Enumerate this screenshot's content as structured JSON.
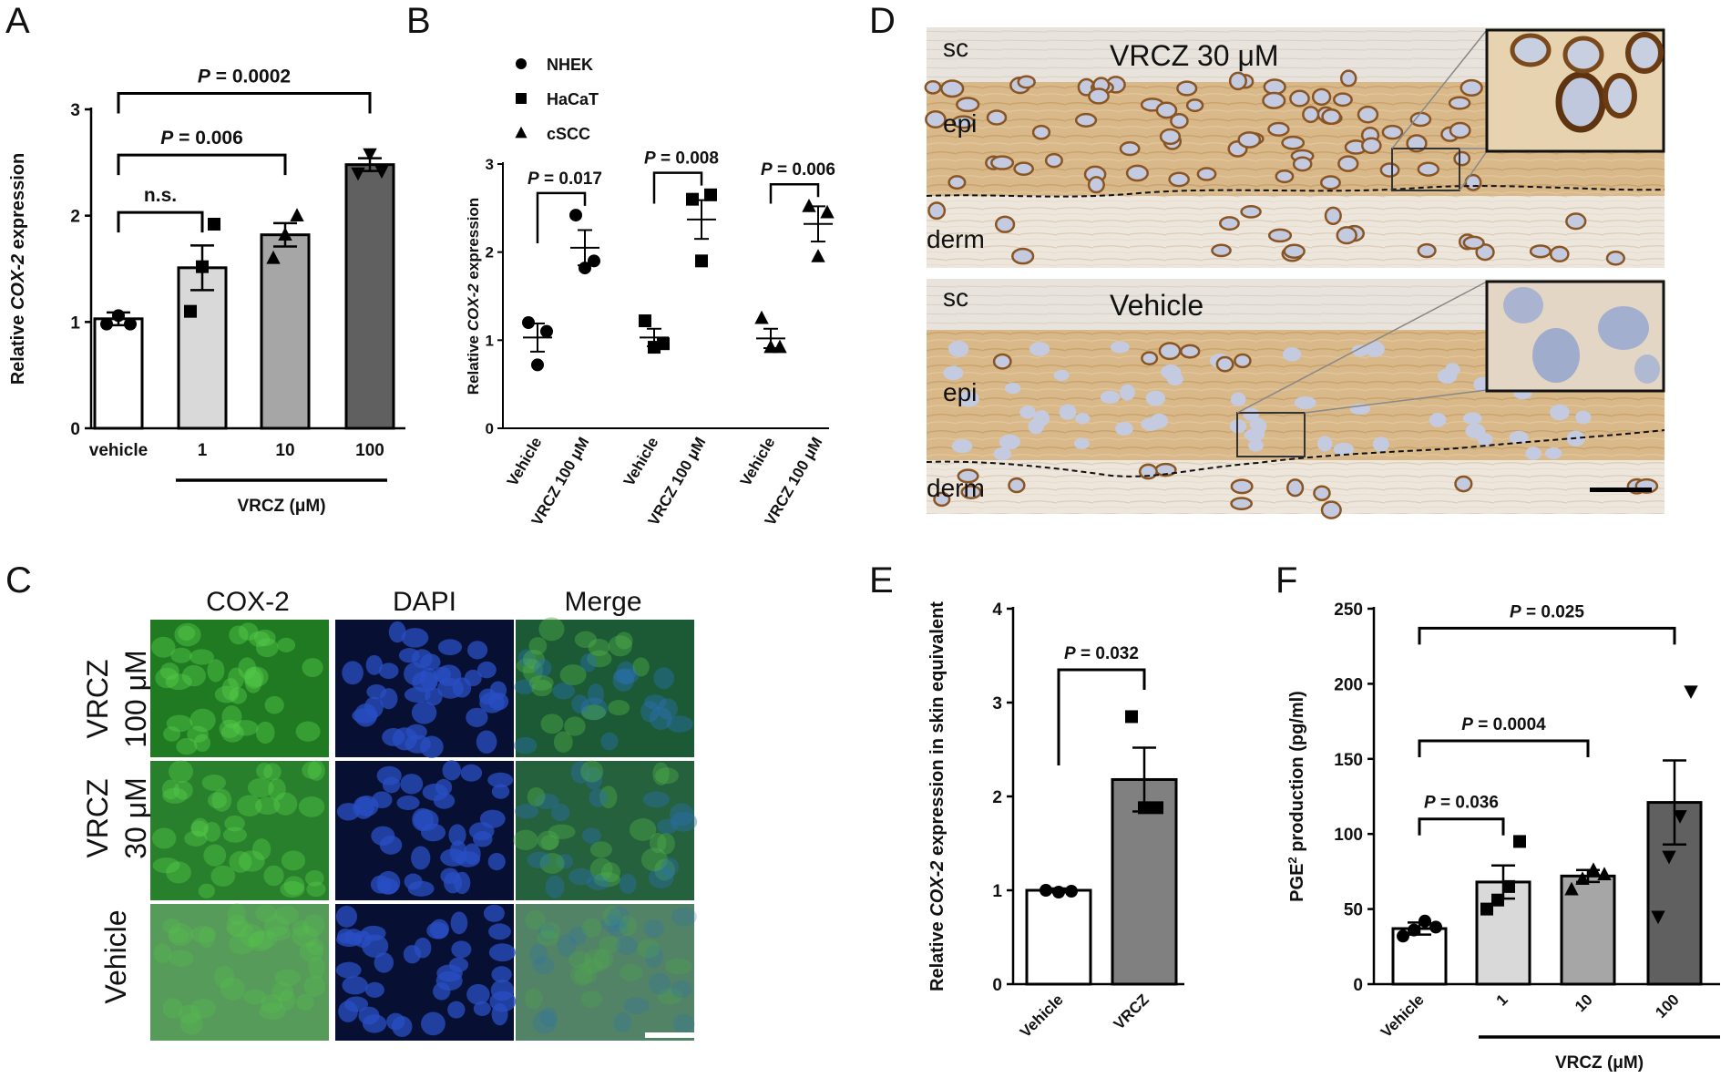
{
  "panels": {
    "A": "A",
    "B": "B",
    "C": "C",
    "D": "D",
    "E": "E",
    "F": "F"
  },
  "chart_data": [
    {
      "id": "A",
      "type": "bar",
      "categories": [
        "vehicle",
        "1",
        "10",
        "100"
      ],
      "values": [
        1.03,
        1.51,
        1.82,
        2.48
      ],
      "errors": [
        0.06,
        0.21,
        0.11,
        0.06
      ],
      "points": [
        [
          0.98,
          1.06,
          0.98
        ],
        [
          1.1,
          1.52,
          1.92
        ],
        [
          1.6,
          1.82,
          2.0
        ],
        [
          2.4,
          2.58,
          2.42
        ]
      ],
      "bar_colors": [
        "#ffffff",
        "#d9d9d9",
        "#a6a6a6",
        "#606060"
      ],
      "ylabel_pre": "Relative ",
      "ylabel_gene": "COX-2",
      "ylabel_post": " expression",
      "yticks": [
        "0",
        "1",
        "2",
        "3"
      ],
      "ylim": [
        0,
        3
      ],
      "group_label": "VRCZ (μM)",
      "comparisons": [
        {
          "from": 0,
          "to": 1,
          "y": 2.03,
          "p_label": "",
          "p_value": "n.s."
        },
        {
          "from": 0,
          "to": 2,
          "y": 2.57,
          "p_label": "P",
          "p_value": " = 0.006"
        },
        {
          "from": 0,
          "to": 3,
          "y": 3.15,
          "p_label": "P",
          "p_value": " = 0.0002"
        }
      ]
    },
    {
      "id": "B",
      "type": "scatter",
      "ylabel_pre": "Relative ",
      "ylabel_gene": "COX-2",
      "ylabel_post": " expression",
      "yticks": [
        "0",
        "1",
        "2",
        "3"
      ],
      "ylim": [
        0,
        3
      ],
      "legend": [
        {
          "label": "NHEK",
          "marker": "circle"
        },
        {
          "label": "HaCaT",
          "marker": "square"
        },
        {
          "label": "cSCC",
          "marker": "triangle"
        }
      ],
      "groups": [
        {
          "marker": "circle",
          "labels": [
            "Vehicle",
            "VRCZ 100 μM"
          ],
          "means": [
            1.03,
            2.05
          ],
          "sems": [
            0.16,
            0.2
          ],
          "points": [
            [
              1.2,
              1.1,
              0.72
            ],
            [
              2.42,
              1.9,
              1.82
            ]
          ],
          "p_label": "P",
          "p_value": " = 0.017"
        },
        {
          "marker": "square",
          "labels": [
            "Vehicle",
            "VRCZ 100 μM"
          ],
          "means": [
            1.03,
            2.37
          ],
          "sems": [
            0.1,
            0.22
          ],
          "points": [
            [
              1.22,
              0.96,
              0.92
            ],
            [
              2.6,
              2.65,
              1.9
            ]
          ],
          "p_label": "P",
          "p_value": " = 0.008"
        },
        {
          "marker": "triangle",
          "labels": [
            "Vehicle",
            "VRCZ 100 μM"
          ],
          "means": [
            1.02,
            2.32
          ],
          "sems": [
            0.11,
            0.2
          ],
          "points": [
            [
              1.25,
              0.92,
              0.92
            ],
            [
              2.52,
              2.45,
              1.95
            ]
          ],
          "p_label": "P",
          "p_value": " = 0.006"
        }
      ]
    },
    {
      "id": "E",
      "type": "bar",
      "categories": [
        "Vehicle",
        "VRCZ"
      ],
      "values": [
        1.0,
        2.18
      ],
      "errors": [
        0.02,
        0.34
      ],
      "points": [
        [
          1.0,
          0.98,
          0.99
        ],
        [
          2.85,
          1.88,
          1.88
        ]
      ],
      "bar_colors": [
        "#ffffff",
        "#808080"
      ],
      "ylabel_pre": "Relative ",
      "ylabel_gene": "COX-2",
      "ylabel_post": " expression in skin equivalent",
      "yticks": [
        "0",
        "1",
        "2",
        "3",
        "4"
      ],
      "ylim": [
        0,
        4
      ],
      "comparisons": [
        {
          "from": 0,
          "to": 1,
          "y": 3.35,
          "p_label": "P",
          "p_value": " = 0.032"
        }
      ]
    },
    {
      "id": "F",
      "type": "bar",
      "categories": [
        "Vehicle",
        "1",
        "10",
        "100"
      ],
      "values": [
        37,
        68,
        72,
        121
      ],
      "errors": [
        4,
        11,
        4,
        28
      ],
      "points": [
        [
          32,
          36,
          42,
          38
        ],
        [
          50,
          56,
          65,
          95
        ],
        [
          63,
          70,
          76,
          73
        ],
        [
          45,
          85,
          112,
          195
        ]
      ],
      "bar_colors": [
        "#ffffff",
        "#d9d9d9",
        "#a6a6a6",
        "#606060"
      ],
      "ylabel_pre": "PGE",
      "ylabel_sup": "2",
      "ylabel_post": " production (pg/ml)",
      "yticks": [
        "0",
        "50",
        "100",
        "150",
        "200",
        "250"
      ],
      "ylim": [
        0,
        250
      ],
      "group_label": "VRCZ (μM)",
      "comparisons": [
        {
          "from": 0,
          "to": 1,
          "y": 110,
          "p_label": "P",
          "p_value": " = 0.036"
        },
        {
          "from": 0,
          "to": 2,
          "y": 162,
          "p_label": "P",
          "p_value": " = 0.0004"
        },
        {
          "from": 0,
          "to": 3,
          "y": 237,
          "p_label": "P",
          "p_value": " = 0.025"
        }
      ]
    }
  ],
  "panel_c": {
    "columns": [
      "COX-2",
      "DAPI",
      "Merge"
    ],
    "rows": [
      {
        "line1": "VRCZ",
        "line2": "100 μM"
      },
      {
        "line1": "VRCZ",
        "line2": "30 μM"
      },
      {
        "line1": "Vehicle",
        "line2": ""
      }
    ]
  },
  "panel_d": {
    "top": {
      "title": "VRCZ 30 μM",
      "sc": "sc",
      "epi": "epi",
      "derm": "derm"
    },
    "bottom": {
      "title": "Vehicle",
      "sc": "sc",
      "epi": "epi",
      "derm": "derm"
    }
  }
}
